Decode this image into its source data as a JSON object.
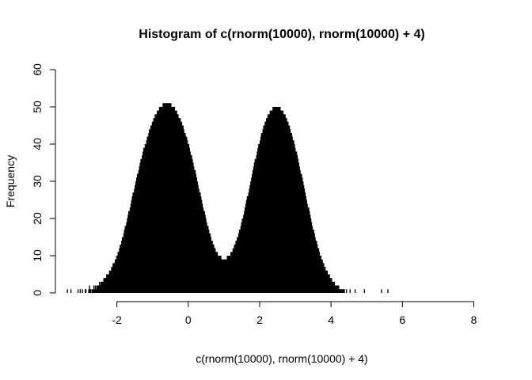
{
  "chart_data": {
    "type": "bar",
    "title": "Histogram of c(rnorm(10000), rnorm(10000) + 4)",
    "xlabel": "c(rnorm(10000), rnorm(10000) + 4)",
    "ylabel": "Frequency",
    "xlim": [
      -3.5,
      8.3
    ],
    "ylim": [
      0,
      60
    ],
    "x_ticks": [
      -2,
      0,
      2,
      4,
      6,
      8
    ],
    "y_ticks": [
      0,
      10,
      20,
      30,
      40,
      50,
      60
    ],
    "bin_width": 0.02,
    "bin_start": -3.4,
    "grid": false,
    "legend": "none",
    "bar_color": "#000000",
    "series": [
      {
        "values": [
          1,
          0,
          0,
          0,
          0,
          1,
          0,
          0,
          0,
          0,
          0,
          0,
          0,
          0,
          0,
          1,
          0,
          0,
          1,
          0,
          0,
          1,
          0,
          0,
          0,
          1,
          1,
          0,
          0,
          0,
          1,
          2,
          1,
          1,
          0,
          1,
          1,
          2,
          1,
          2,
          1,
          2,
          2,
          2,
          2,
          3,
          2,
          3,
          3,
          3,
          3,
          4,
          4,
          4,
          4,
          5,
          5,
          5,
          5,
          6,
          6,
          6,
          7,
          7,
          8,
          8,
          8,
          9,
          9,
          10,
          10,
          11,
          11,
          12,
          13,
          13,
          14,
          15,
          15,
          16,
          17,
          18,
          18,
          19,
          20,
          21,
          22,
          22,
          23,
          24,
          25,
          26,
          27,
          27,
          28,
          29,
          30,
          31,
          32,
          32,
          33,
          34,
          35,
          36,
          36,
          37,
          38,
          39,
          39,
          40,
          40,
          41,
          42,
          42,
          43,
          44,
          44,
          45,
          45,
          46,
          46,
          47,
          47,
          48,
          48,
          48,
          49,
          49,
          49,
          50,
          50,
          50,
          50,
          50,
          51,
          51,
          51,
          51,
          51,
          51,
          51,
          51,
          51,
          51,
          51,
          51,
          50,
          50,
          50,
          50,
          50,
          49,
          49,
          49,
          48,
          48,
          47,
          47,
          47,
          46,
          46,
          45,
          45,
          44,
          43,
          43,
          42,
          42,
          41,
          40,
          40,
          39,
          38,
          37,
          37,
          36,
          35,
          34,
          33,
          33,
          32,
          31,
          30,
          29,
          28,
          27,
          27,
          26,
          25,
          24,
          23,
          22,
          22,
          21,
          20,
          19,
          18,
          18,
          17,
          16,
          16,
          15,
          14,
          14,
          13,
          13,
          12,
          12,
          11,
          11,
          11,
          10,
          10,
          10,
          10,
          10,
          9,
          9,
          9,
          9,
          9,
          9,
          9,
          9,
          10,
          10,
          10,
          10,
          10,
          11,
          11,
          11,
          12,
          12,
          13,
          13,
          14,
          14,
          15,
          15,
          16,
          17,
          17,
          18,
          19,
          20,
          20,
          21,
          22,
          23,
          24,
          25,
          26,
          26,
          27,
          28,
          29,
          30,
          31,
          32,
          33,
          34,
          35,
          36,
          36,
          37,
          38,
          39,
          40,
          40,
          41,
          42,
          43,
          43,
          44,
          45,
          45,
          46,
          46,
          47,
          47,
          48,
          48,
          48,
          49,
          49,
          49,
          49,
          50,
          50,
          50,
          50,
          50,
          50,
          50,
          50,
          50,
          50,
          50,
          49,
          49,
          49,
          49,
          48,
          48,
          48,
          47,
          47,
          46,
          46,
          45,
          45,
          44,
          43,
          43,
          42,
          41,
          41,
          40,
          39,
          38,
          38,
          37,
          36,
          35,
          34,
          33,
          32,
          32,
          31,
          30,
          29,
          28,
          27,
          26,
          25,
          24,
          23,
          23,
          22,
          21,
          20,
          19,
          18,
          17,
          17,
          16,
          15,
          14,
          14,
          13,
          12,
          12,
          11,
          10,
          10,
          9,
          9,
          8,
          8,
          7,
          7,
          6,
          6,
          6,
          5,
          5,
          5,
          4,
          4,
          4,
          3,
          3,
          3,
          3,
          2,
          2,
          2,
          2,
          2,
          2,
          1,
          1,
          1,
          1,
          1,
          1,
          1,
          1,
          0,
          0,
          1,
          0,
          0,
          0,
          0,
          1,
          0,
          0,
          0,
          0,
          0,
          0,
          1,
          0,
          0,
          0,
          0,
          0,
          0,
          0,
          0,
          0,
          0,
          0,
          0,
          1,
          0,
          0,
          0,
          0,
          0,
          0,
          0,
          0,
          0,
          0,
          0,
          0,
          0,
          0,
          0,
          0,
          0,
          0,
          0,
          0,
          0,
          0,
          0,
          1,
          0,
          0,
          0,
          0,
          0,
          0,
          0,
          0,
          1
        ]
      }
    ]
  }
}
